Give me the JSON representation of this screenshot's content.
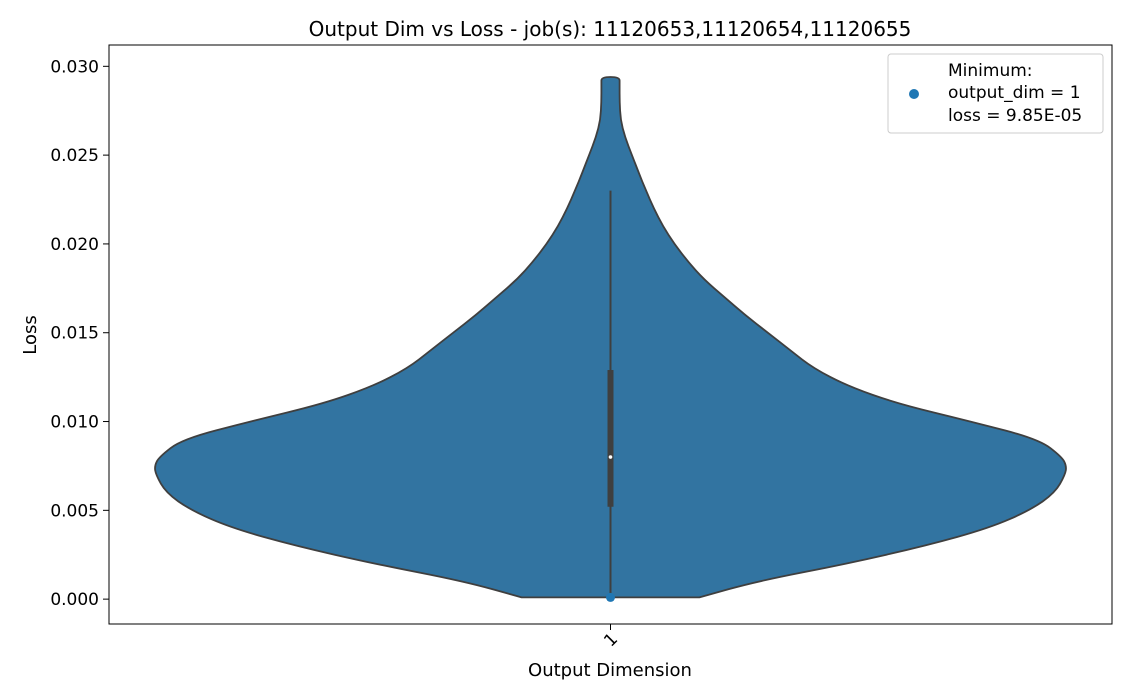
{
  "chart_data": {
    "type": "violin",
    "title": "Output Dim vs Loss - job(s): 11120653,11120654,11120655",
    "xlabel": "Output Dimension",
    "ylabel": "Loss",
    "categories": [
      "1"
    ],
    "ylim": [
      -0.0014,
      0.0312
    ],
    "yticks": [
      0.0,
      0.005,
      0.01,
      0.015,
      0.02,
      0.025,
      0.03
    ],
    "ytick_labels": [
      "0.000",
      "0.005",
      "0.010",
      "0.015",
      "0.020",
      "0.025",
      "0.030"
    ],
    "grid": false,
    "violin": {
      "category": "1",
      "color": "#3274a1",
      "edge_color": "#3f3f3f",
      "min": 9.85e-05,
      "max": 0.0294,
      "median": 0.008,
      "q1": 0.0052,
      "q3": 0.0129,
      "whisker_low": 0.0003,
      "whisker_high": 0.023,
      "density_profile": [
        [
          9.85e-05,
          0.195
        ],
        [
          0.001,
          0.32
        ],
        [
          0.002,
          0.52
        ],
        [
          0.003,
          0.69
        ],
        [
          0.004,
          0.83
        ],
        [
          0.005,
          0.92
        ],
        [
          0.006,
          0.975
        ],
        [
          0.007,
          0.997
        ],
        [
          0.0075,
          1.0
        ],
        [
          0.008,
          0.99
        ],
        [
          0.009,
          0.94
        ],
        [
          0.01,
          0.79
        ],
        [
          0.011,
          0.63
        ],
        [
          0.012,
          0.52
        ],
        [
          0.013,
          0.445
        ],
        [
          0.014,
          0.395
        ],
        [
          0.015,
          0.345
        ],
        [
          0.016,
          0.295
        ],
        [
          0.017,
          0.25
        ],
        [
          0.018,
          0.205
        ],
        [
          0.019,
          0.17
        ],
        [
          0.02,
          0.14
        ],
        [
          0.021,
          0.115
        ],
        [
          0.022,
          0.095
        ],
        [
          0.023,
          0.078
        ],
        [
          0.024,
          0.062
        ],
        [
          0.025,
          0.047
        ],
        [
          0.026,
          0.032
        ],
        [
          0.027,
          0.022
        ],
        [
          0.028,
          0.02
        ],
        [
          0.029,
          0.02
        ],
        [
          0.0294,
          0.02
        ]
      ]
    },
    "minimum_point": {
      "category": "1",
      "value": 9.85e-05,
      "color": "#1f77b4"
    },
    "legend": {
      "placement": "upper right",
      "lines": [
        "Minimum:",
        "output_dim = 1",
        "loss = 9.85E-05"
      ]
    }
  }
}
